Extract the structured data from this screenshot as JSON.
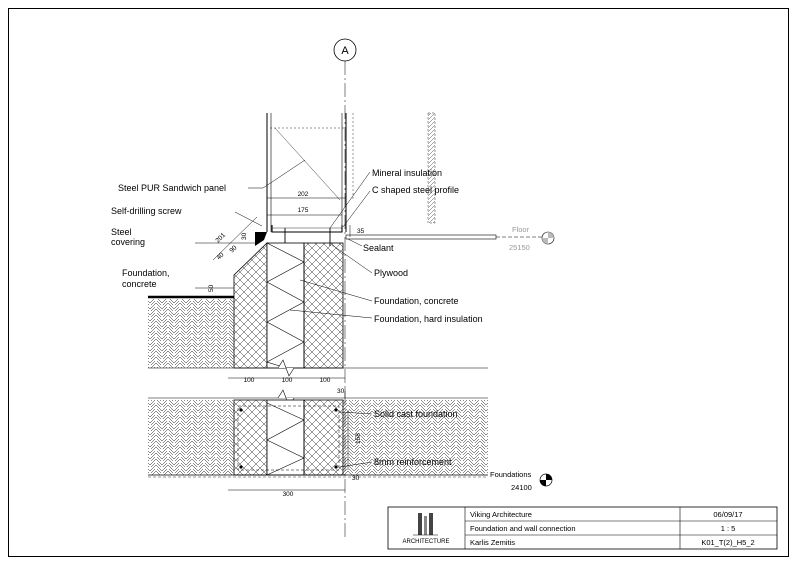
{
  "grid_marker": "A",
  "labels": {
    "steel_pur_panel": "Steel PUR Sandwich panel",
    "self_drilling_screw": "Self-drilling screw",
    "steel_covering_1": "Steel",
    "steel_covering_2": "covering",
    "foundation_concrete_left_1": "Foundation,",
    "foundation_concrete_left_2": "concrete",
    "mineral_insulation": "Mineral insulation",
    "c_shaped_profile": "C shaped steel profile",
    "sealant": "Sealant",
    "plywood": "Plywood",
    "foundation_concrete_right": "Foundation, concrete",
    "foundation_hard_insulation": "Foundation, hard insulation",
    "solid_cast_foundation": "Solid cast foundation",
    "reinforcement": "8mm reinforcement"
  },
  "levels": {
    "floor_label": "Floor",
    "floor_value": "25150",
    "foundations_label": "Foundations",
    "foundations_value": "24100"
  },
  "dimensions": {
    "d202": "202",
    "d175": "175",
    "d35": "35",
    "d201": "201",
    "d30_left": "30",
    "d90": "90",
    "d40": "40",
    "d50": "50",
    "d100_a": "100",
    "d100_b": "100",
    "d100_c": "100",
    "d30_mid": "30",
    "d158": "158",
    "d30_bottom": "30",
    "d300": "300"
  },
  "title_block": {
    "company": "Viking Architecture",
    "date": "06/09/17",
    "drawing_title": "Foundation and wall connection",
    "scale": "1 : 5",
    "author": "Karlis Zemitis",
    "drawing_number": "K01_T(2)_H5_2",
    "logo_text": "ARCHITECTURE"
  }
}
